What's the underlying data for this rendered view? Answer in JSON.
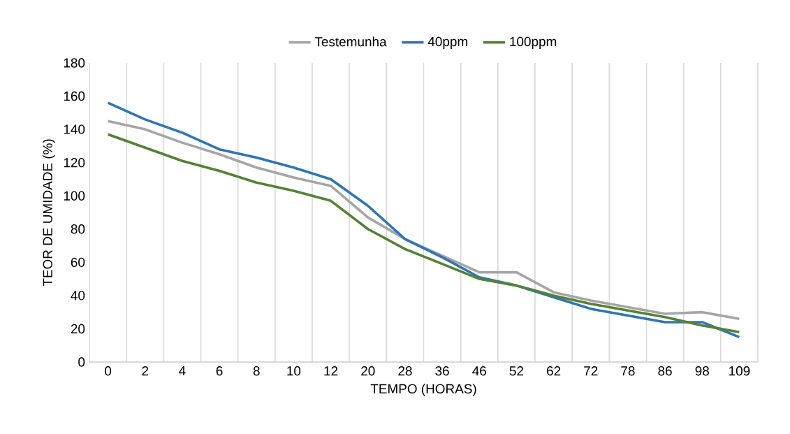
{
  "chart_data": {
    "type": "line",
    "xlabel": "TEMPO (HORAS)",
    "ylabel": "TEOR DE UMIDADE (%)",
    "categories": [
      "0",
      "2",
      "4",
      "6",
      "8",
      "10",
      "12",
      "20",
      "28",
      "36",
      "46",
      "52",
      "62",
      "72",
      "78",
      "86",
      "98",
      "109"
    ],
    "series": [
      {
        "name": "Testemunha",
        "color": "#a5a5a5",
        "values": [
          145,
          140,
          132,
          125,
          117,
          111,
          106,
          87,
          74,
          64,
          54,
          54,
          42,
          37,
          33,
          29,
          30,
          26
        ]
      },
      {
        "name": "40ppm",
        "color": "#2e75b6",
        "values": [
          156,
          146,
          138,
          128,
          123,
          117,
          110,
          94,
          74,
          63,
          51,
          46,
          39,
          32,
          28,
          24,
          24,
          15
        ]
      },
      {
        "name": "100ppm",
        "color": "#548235",
        "values": [
          137,
          129,
          121,
          115,
          108,
          103,
          97,
          80,
          68,
          59,
          50,
          46,
          40,
          35,
          31,
          27,
          22,
          18
        ]
      }
    ],
    "ylim": [
      0,
      180
    ],
    "yticks": [
      0,
      20,
      40,
      60,
      80,
      100,
      120,
      140,
      160,
      180
    ],
    "grid": "x",
    "legend": "top",
    "marker": "none",
    "line_style": "solid"
  }
}
